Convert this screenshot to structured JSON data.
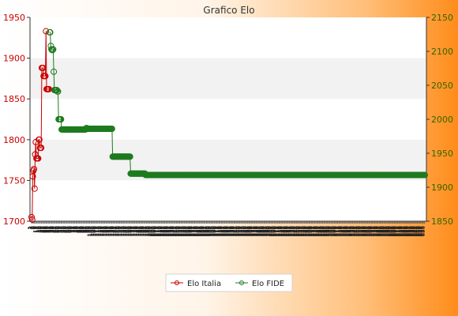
{
  "chart_data": {
    "type": "line",
    "title": "Grafico Elo",
    "y_left": {
      "range": [
        1700,
        1950
      ],
      "ticks": [
        1700,
        1750,
        1800,
        1850,
        1900,
        1950
      ]
    },
    "y_right": {
      "range": [
        1850,
        2150
      ],
      "ticks": [
        1850,
        1900,
        1950,
        2000,
        2050,
        2100,
        2150
      ]
    },
    "grid": "horizontal bands",
    "legend_placement": "bottom-center",
    "series": [
      {
        "name": "Elo Italia",
        "axis": "left",
        "color": "#cc0000",
        "x": [
          1,
          2,
          3,
          4,
          5,
          6,
          7,
          8,
          9,
          10,
          11,
          12,
          13,
          14,
          15,
          16,
          17,
          18,
          19,
          20,
          21,
          22,
          23,
          24,
          25,
          26,
          27,
          28,
          29,
          30
        ],
        "values": [
          1705,
          1702,
          1755,
          1762,
          1764,
          1740,
          1782,
          1797,
          1777,
          1777,
          1777,
          1777,
          1800,
          1800,
          1790,
          1790,
          1790,
          1888,
          1888,
          1888,
          1878,
          1878,
          1878,
          1878,
          1933,
          1862,
          1862,
          1862,
          1862,
          1862
        ]
      },
      {
        "name": "Elo FIDE",
        "axis": "right",
        "color": "#1f7a1f",
        "x_start": 31,
        "values": [
          2128,
          2128,
          2108,
          2103,
          2102,
          2102,
          2103,
          2070,
          2043,
          2043,
          2043,
          2043,
          2043,
          2041,
          2041,
          2000,
          2000,
          2000,
          2000,
          2000,
          1985,
          1985,
          1985,
          1985,
          1985,
          1985,
          1985,
          1985,
          1985,
          1985,
          1985,
          1985,
          1985,
          1985,
          1985,
          1985,
          1985,
          1985,
          1985,
          1985,
          1985,
          1985,
          1985,
          1985,
          1985,
          1985,
          1985,
          1985,
          1985,
          1985,
          1985,
          1985,
          1985,
          1985,
          1985,
          1985,
          1985,
          1985,
          1985,
          1985,
          1985,
          1987,
          1987,
          1986,
          1986,
          1986,
          1986,
          1986,
          1986,
          1986,
          1986,
          1986,
          1986,
          1986,
          1986,
          1986,
          1986,
          1986,
          1986,
          1986,
          1986,
          1986,
          1986,
          1986,
          1986,
          1986,
          1986,
          1986,
          1986,
          1986,
          1986,
          1986,
          1986,
          1986,
          1986,
          1986,
          1986,
          1986,
          1986,
          1986,
          1986,
          1986,
          1986,
          1986,
          1986,
          1945,
          1945,
          1945,
          1945,
          1945,
          1945,
          1945,
          1945,
          1945,
          1945,
          1945,
          1945,
          1945,
          1945,
          1945,
          1945,
          1945,
          1945,
          1945,
          1945,
          1945,
          1945,
          1945,
          1945,
          1945,
          1945,
          1945,
          1945,
          1945,
          1945,
          1920,
          1920,
          1920,
          1920,
          1920,
          1920,
          1920,
          1920,
          1920,
          1920,
          1920,
          1920,
          1920,
          1920,
          1920,
          1920,
          1920,
          1920,
          1920,
          1920,
          1920,
          1920,
          1920,
          1920,
          1920,
          1918,
          1918,
          1918,
          1918,
          1918,
          1918,
          1918,
          1918,
          1918,
          1918,
          1918,
          1918,
          1918,
          1918,
          1918,
          1918,
          1918,
          1918,
          1918,
          1918,
          1918,
          1918,
          1918,
          1918,
          1918,
          1918,
          1918,
          1918,
          1918,
          1918,
          1918,
          1918,
          1918,
          1918,
          1918,
          1918,
          1918,
          1918,
          1918,
          1918,
          1918,
          1918,
          1918,
          1918,
          1918,
          1918,
          1918,
          1918,
          1918,
          1918,
          1918,
          1918,
          1918,
          1918,
          1918,
          1918,
          1918,
          1918,
          1918,
          1918,
          1918,
          1918,
          1918,
          1918,
          1918,
          1918,
          1918,
          1918,
          1918,
          1918,
          1918,
          1918,
          1918,
          1918,
          1918,
          1918,
          1918,
          1918,
          1918,
          1918,
          1918,
          1918,
          1918,
          1918,
          1918,
          1918,
          1918,
          1918,
          1918,
          1918,
          1918,
          1918,
          1918,
          1918,
          1918,
          1918,
          1918,
          1918,
          1918,
          1918,
          1918,
          1918,
          1918,
          1918,
          1918,
          1918,
          1918,
          1918,
          1918,
          1918,
          1918,
          1918,
          1918,
          1918,
          1918,
          1918,
          1918,
          1918,
          1918,
          1918,
          1918,
          1918,
          1918,
          1918,
          1918,
          1918,
          1918,
          1918,
          1918,
          1918,
          1918,
          1918,
          1918,
          1918,
          1918,
          1918,
          1918,
          1918,
          1918,
          1918,
          1918,
          1918,
          1918,
          1918,
          1918,
          1918,
          1918,
          1918,
          1918,
          1918,
          1918,
          1918,
          1918,
          1918,
          1918,
          1918,
          1918,
          1918,
          1918,
          1918,
          1918,
          1918,
          1918,
          1918,
          1918,
          1918,
          1918,
          1918,
          1918,
          1918,
          1918,
          1918,
          1918,
          1918,
          1918,
          1918,
          1918,
          1918,
          1918,
          1918,
          1918,
          1918,
          1918,
          1918,
          1918,
          1918,
          1918,
          1918,
          1918,
          1918,
          1918,
          1918,
          1918,
          1918,
          1918,
          1918,
          1918,
          1918,
          1918,
          1918,
          1918,
          1918,
          1918,
          1918,
          1918,
          1918,
          1918,
          1918,
          1918,
          1918,
          1918,
          1918,
          1918,
          1918,
          1918,
          1918,
          1918,
          1918,
          1918,
          1918,
          1918,
          1918,
          1918,
          1918,
          1918,
          1918,
          1918,
          1918,
          1918,
          1918,
          1918,
          1918,
          1918,
          1918,
          1918,
          1918,
          1918,
          1918,
          1918,
          1918,
          1918,
          1918,
          1918,
          1918,
          1918,
          1918,
          1918,
          1918,
          1918,
          1918,
          1918,
          1918,
          1918,
          1918,
          1918,
          1918,
          1918,
          1918,
          1918,
          1918,
          1918,
          1918,
          1918,
          1918,
          1918,
          1918,
          1918,
          1918,
          1918,
          1918,
          1918,
          1918,
          1918,
          1918,
          1918,
          1918,
          1918,
          1918,
          1918,
          1918,
          1918,
          1918,
          1918,
          1918,
          1918,
          1918,
          1918,
          1918,
          1918,
          1918,
          1918,
          1918,
          1918,
          1918,
          1918,
          1918,
          1918,
          1918,
          1918,
          1918,
          1918,
          1918,
          1918,
          1918,
          1918,
          1918,
          1918,
          1918,
          1918,
          1918,
          1918,
          1918,
          1918,
          1918,
          1918,
          1918,
          1918,
          1918,
          1918,
          1918,
          1918,
          1918,
          1918,
          1918,
          1918,
          1918,
          1918,
          1918,
          1918,
          1918,
          1918,
          1918,
          1918,
          1918,
          1918,
          1918,
          1918,
          1918,
          1918,
          1918,
          1918,
          1918,
          1918,
          1918,
          1918,
          1918,
          1918,
          1918,
          1918,
          1918,
          1918,
          1918,
          1918,
          1918,
          1918,
          1918,
          1918,
          1918,
          1918,
          1918,
          1918,
          1918,
          1918,
          1918,
          1918,
          1918,
          1918,
          1918,
          1918,
          1918,
          1918,
          1918,
          1918,
          1918,
          1918,
          1918,
          1918,
          1918,
          1918,
          1918,
          1918,
          1918,
          1918,
          1918,
          1918,
          1918,
          1918,
          1918,
          1918,
          1918,
          1918,
          1918,
          1918,
          1918,
          1918,
          1918,
          1918,
          1918,
          1918,
          1918,
          1918,
          1918,
          1918,
          1918,
          1918,
          1918,
          1918,
          1918,
          1918,
          1918,
          1918,
          1918,
          1918,
          1918,
          1918,
          1918,
          1918,
          1918,
          1918,
          1918,
          1918,
          1918,
          1918,
          1918,
          1918,
          1918,
          1918,
          1918,
          1918,
          1918,
          1918,
          1918,
          1918,
          1918,
          1918,
          1918,
          1918,
          1918,
          1918,
          1918,
          1918,
          1918,
          1918,
          1918,
          1918,
          1918,
          1918,
          1918,
          1918,
          1918,
          1918,
          1918,
          1918,
          1918,
          1918,
          1918,
          1918,
          1918,
          1918,
          1918,
          1918,
          1918,
          1918,
          1918,
          1918,
          1918
        ]
      }
    ]
  }
}
